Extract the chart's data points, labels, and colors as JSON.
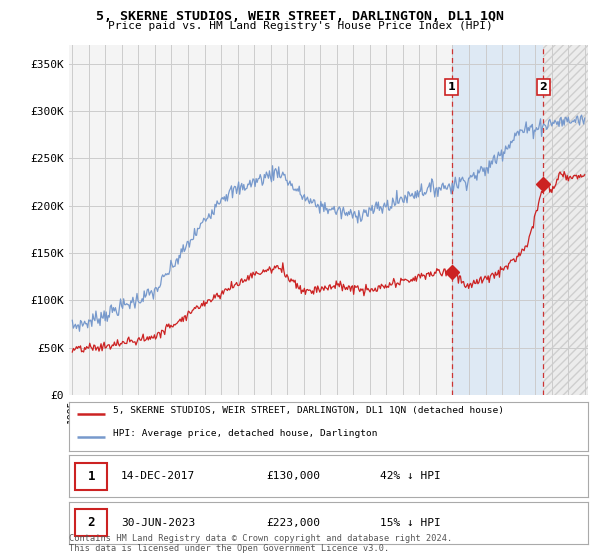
{
  "title": "5, SKERNE STUDIOS, WEIR STREET, DARLINGTON, DL1 1QN",
  "subtitle": "Price paid vs. HM Land Registry's House Price Index (HPI)",
  "background_color": "#ffffff",
  "plot_bg_color": "#f0f0f0",
  "grid_color": "#cccccc",
  "hpi_color": "#7799cc",
  "price_color": "#cc2222",
  "dashed_color": "#cc3333",
  "shade1_color": "#ddeeff",
  "marker1_label": "1",
  "marker2_label": "2",
  "marker1_date": "14-DEC-2017",
  "marker1_price": "£130,000",
  "marker1_pct": "42% ↓ HPI",
  "marker2_date": "30-JUN-2023",
  "marker2_price": "£223,000",
  "marker2_pct": "15% ↓ HPI",
  "legend_line1": "5, SKERNE STUDIOS, WEIR STREET, DARLINGTON, DL1 1QN (detached house)",
  "legend_line2": "HPI: Average price, detached house, Darlington",
  "footer": "Contains HM Land Registry data © Crown copyright and database right 2024.\nThis data is licensed under the Open Government Licence v3.0.",
  "ylim": [
    0,
    370000
  ],
  "yticks": [
    0,
    50000,
    100000,
    150000,
    200000,
    250000,
    300000,
    350000
  ],
  "ytick_labels": [
    "£0",
    "£50K",
    "£100K",
    "£150K",
    "£200K",
    "£250K",
    "£300K",
    "£350K"
  ],
  "marker1_x": 2017.96,
  "marker1_y": 130000,
  "marker2_x": 2023.5,
  "marker2_y": 223000,
  "dashed_x1": 2017.96,
  "dashed_x2": 2023.5,
  "xlim_left": 1994.8,
  "xlim_right": 2026.2
}
